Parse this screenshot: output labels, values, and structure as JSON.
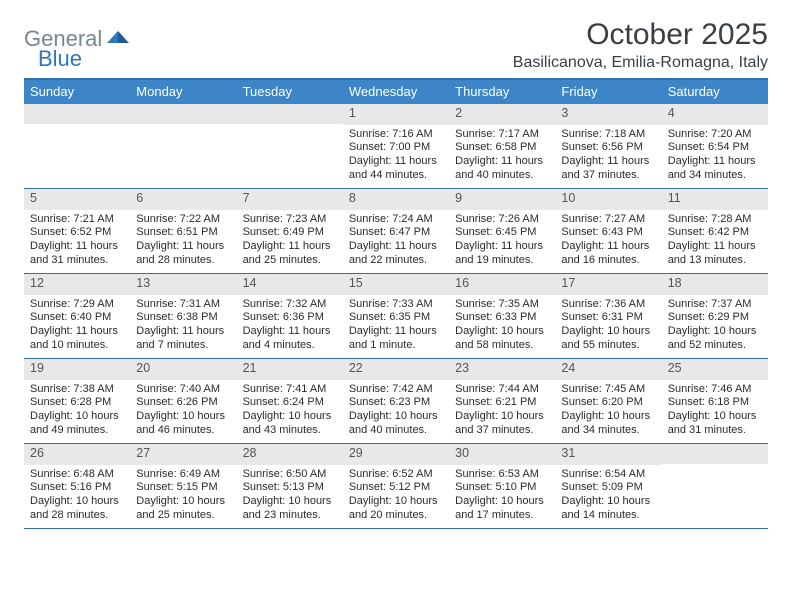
{
  "logo": {
    "word1": "General",
    "word2": "Blue"
  },
  "title": "October 2025",
  "location": "Basilicanova, Emilia-Romagna, Italy",
  "colors": {
    "header_bg": "#3d85c6",
    "header_border": "#326fa9",
    "daynum_bg": "#e8e8e8",
    "logo_gray": "#7a8690",
    "logo_blue": "#2f78bd",
    "text": "#2b2b2b"
  },
  "dayNames": [
    "Sunday",
    "Monday",
    "Tuesday",
    "Wednesday",
    "Thursday",
    "Friday",
    "Saturday"
  ],
  "weeks": [
    [
      null,
      null,
      null,
      {
        "n": "1",
        "sr": "7:16 AM",
        "ss": "7:00 PM",
        "dl": "11 hours and 44 minutes."
      },
      {
        "n": "2",
        "sr": "7:17 AM",
        "ss": "6:58 PM",
        "dl": "11 hours and 40 minutes."
      },
      {
        "n": "3",
        "sr": "7:18 AM",
        "ss": "6:56 PM",
        "dl": "11 hours and 37 minutes."
      },
      {
        "n": "4",
        "sr": "7:20 AM",
        "ss": "6:54 PM",
        "dl": "11 hours and 34 minutes."
      }
    ],
    [
      {
        "n": "5",
        "sr": "7:21 AM",
        "ss": "6:52 PM",
        "dl": "11 hours and 31 minutes."
      },
      {
        "n": "6",
        "sr": "7:22 AM",
        "ss": "6:51 PM",
        "dl": "11 hours and 28 minutes."
      },
      {
        "n": "7",
        "sr": "7:23 AM",
        "ss": "6:49 PM",
        "dl": "11 hours and 25 minutes."
      },
      {
        "n": "8",
        "sr": "7:24 AM",
        "ss": "6:47 PM",
        "dl": "11 hours and 22 minutes."
      },
      {
        "n": "9",
        "sr": "7:26 AM",
        "ss": "6:45 PM",
        "dl": "11 hours and 19 minutes."
      },
      {
        "n": "10",
        "sr": "7:27 AM",
        "ss": "6:43 PM",
        "dl": "11 hours and 16 minutes."
      },
      {
        "n": "11",
        "sr": "7:28 AM",
        "ss": "6:42 PM",
        "dl": "11 hours and 13 minutes."
      }
    ],
    [
      {
        "n": "12",
        "sr": "7:29 AM",
        "ss": "6:40 PM",
        "dl": "11 hours and 10 minutes."
      },
      {
        "n": "13",
        "sr": "7:31 AM",
        "ss": "6:38 PM",
        "dl": "11 hours and 7 minutes."
      },
      {
        "n": "14",
        "sr": "7:32 AM",
        "ss": "6:36 PM",
        "dl": "11 hours and 4 minutes."
      },
      {
        "n": "15",
        "sr": "7:33 AM",
        "ss": "6:35 PM",
        "dl": "11 hours and 1 minute."
      },
      {
        "n": "16",
        "sr": "7:35 AM",
        "ss": "6:33 PM",
        "dl": "10 hours and 58 minutes."
      },
      {
        "n": "17",
        "sr": "7:36 AM",
        "ss": "6:31 PM",
        "dl": "10 hours and 55 minutes."
      },
      {
        "n": "18",
        "sr": "7:37 AM",
        "ss": "6:29 PM",
        "dl": "10 hours and 52 minutes."
      }
    ],
    [
      {
        "n": "19",
        "sr": "7:38 AM",
        "ss": "6:28 PM",
        "dl": "10 hours and 49 minutes."
      },
      {
        "n": "20",
        "sr": "7:40 AM",
        "ss": "6:26 PM",
        "dl": "10 hours and 46 minutes."
      },
      {
        "n": "21",
        "sr": "7:41 AM",
        "ss": "6:24 PM",
        "dl": "10 hours and 43 minutes."
      },
      {
        "n": "22",
        "sr": "7:42 AM",
        "ss": "6:23 PM",
        "dl": "10 hours and 40 minutes."
      },
      {
        "n": "23",
        "sr": "7:44 AM",
        "ss": "6:21 PM",
        "dl": "10 hours and 37 minutes."
      },
      {
        "n": "24",
        "sr": "7:45 AM",
        "ss": "6:20 PM",
        "dl": "10 hours and 34 minutes."
      },
      {
        "n": "25",
        "sr": "7:46 AM",
        "ss": "6:18 PM",
        "dl": "10 hours and 31 minutes."
      }
    ],
    [
      {
        "n": "26",
        "sr": "6:48 AM",
        "ss": "5:16 PM",
        "dl": "10 hours and 28 minutes."
      },
      {
        "n": "27",
        "sr": "6:49 AM",
        "ss": "5:15 PM",
        "dl": "10 hours and 25 minutes."
      },
      {
        "n": "28",
        "sr": "6:50 AM",
        "ss": "5:13 PM",
        "dl": "10 hours and 23 minutes."
      },
      {
        "n": "29",
        "sr": "6:52 AM",
        "ss": "5:12 PM",
        "dl": "10 hours and 20 minutes."
      },
      {
        "n": "30",
        "sr": "6:53 AM",
        "ss": "5:10 PM",
        "dl": "10 hours and 17 minutes."
      },
      {
        "n": "31",
        "sr": "6:54 AM",
        "ss": "5:09 PM",
        "dl": "10 hours and 14 minutes."
      },
      null
    ]
  ],
  "labels": {
    "sunrise": "Sunrise: ",
    "sunset": "Sunset: ",
    "daylight": "Daylight: "
  }
}
